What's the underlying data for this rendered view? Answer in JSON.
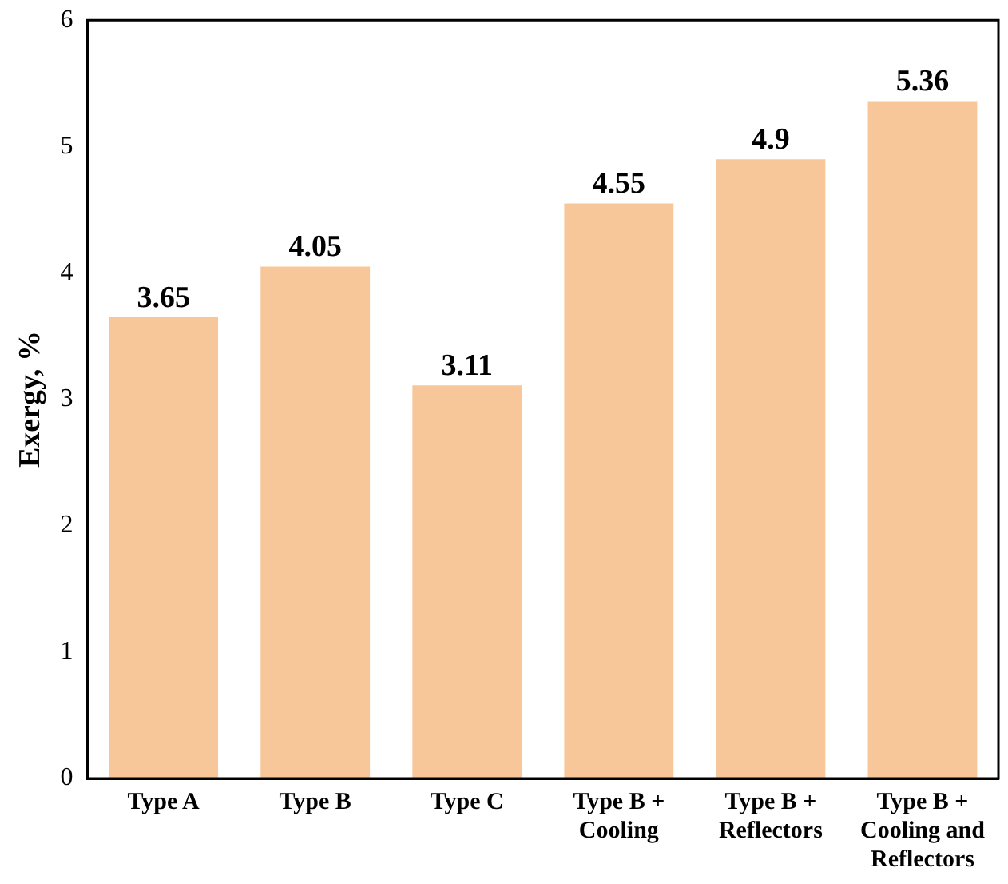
{
  "chart_data": {
    "type": "bar",
    "ylabel": "Exergy, %",
    "categories": [
      "Type A",
      "Type B",
      "Type C",
      "Type B + Cooling",
      "Type B + Reflectors",
      "Type B + Cooling and Reflectors"
    ],
    "values": [
      3.65,
      4.05,
      3.11,
      4.55,
      4.9,
      5.36
    ],
    "color": "#f7c79a",
    "ylim": [
      0,
      6
    ],
    "yticks": [
      0,
      1,
      2,
      3,
      4,
      5,
      6
    ],
    "grid": false,
    "data_labels": true
  }
}
